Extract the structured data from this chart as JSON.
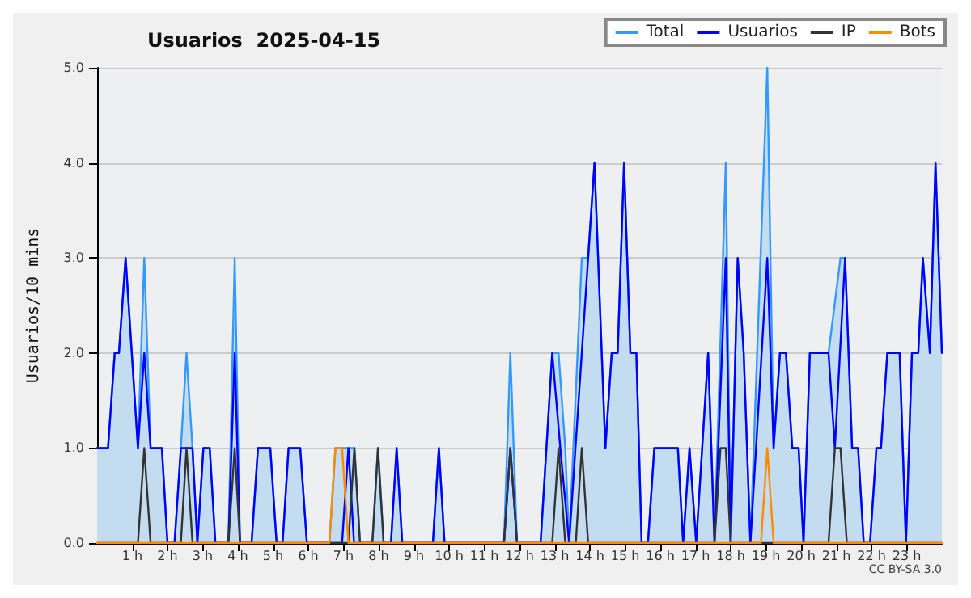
{
  "chart_data": {
    "type": "line",
    "title": "Usuarios  2025-04-15",
    "ylabel": "Usuarios/10 mins",
    "annotations": [
      "CC BY-SA 3.0"
    ],
    "xlim": [
      0,
      24
    ],
    "xticks": [
      {
        "value": 1,
        "label": "1 h"
      },
      {
        "value": 2,
        "label": "2 h"
      },
      {
        "value": 3,
        "label": "3 h"
      },
      {
        "value": 4,
        "label": "4 h"
      },
      {
        "value": 5,
        "label": "5 h"
      },
      {
        "value": 6,
        "label": "6 h"
      },
      {
        "value": 7,
        "label": "7 h"
      },
      {
        "value": 8,
        "label": "8 h"
      },
      {
        "value": 9,
        "label": "9 h"
      },
      {
        "value": 10,
        "label": "10 h"
      },
      {
        "value": 11,
        "label": "11 h"
      },
      {
        "value": 12,
        "label": "12 h"
      },
      {
        "value": 13,
        "label": "13 h"
      },
      {
        "value": 14,
        "label": "14 h"
      },
      {
        "value": 15,
        "label": "15 h"
      },
      {
        "value": 16,
        "label": "16 h"
      },
      {
        "value": 17,
        "label": "17 h"
      },
      {
        "value": 18,
        "label": "18 h"
      },
      {
        "value": 19,
        "label": "19 h"
      },
      {
        "value": 20,
        "label": "20 h"
      },
      {
        "value": 21,
        "label": "21 h"
      },
      {
        "value": 22,
        "label": "22 h"
      },
      {
        "value": 23,
        "label": "23 h"
      }
    ],
    "ylim": [
      0,
      5
    ],
    "yticks": [
      {
        "value": 0,
        "label": "0.0"
      },
      {
        "value": 1,
        "label": "1.0"
      },
      {
        "value": 2,
        "label": "2.0"
      },
      {
        "value": 3,
        "label": "3.0"
      },
      {
        "value": 4,
        "label": "4.0"
      },
      {
        "value": 5,
        "label": "5.0"
      }
    ],
    "grid": "y",
    "legend": "top right",
    "marker": "none",
    "line_style": "solid",
    "series": [
      {
        "name": "Total",
        "type": "area",
        "color": "#3399ff",
        "x": [
          0,
          0.31,
          0.5,
          0.62,
          0.81,
          1.16,
          1.34,
          1.52,
          1.84,
          2.0,
          2.2,
          2.38,
          2.54,
          2.71,
          2.85,
          3.02,
          3.2,
          3.36,
          3.73,
          3.91,
          4.06,
          4.39,
          4.57,
          4.92,
          5.1,
          5.27,
          5.44,
          5.77,
          5.96,
          6.6,
          6.77,
          7.31,
          7.47,
          7.82,
          7.98,
          8.14,
          8.35,
          8.51,
          8.67,
          9.54,
          9.71,
          9.87,
          11.56,
          11.74,
          11.93,
          12.6,
          12.93,
          13.11,
          13.3,
          13.41,
          13.77,
          13.95,
          14.13,
          14.44,
          14.62,
          14.79,
          14.97,
          15.15,
          15.32,
          15.47,
          15.65,
          15.83,
          16.5,
          16.65,
          16.83,
          17.02,
          17.36,
          17.54,
          17.86,
          18.0,
          18.2,
          18.37,
          18.56,
          19.04,
          19.22,
          19.4,
          19.57,
          19.75,
          19.93,
          20.07,
          20.25,
          20.78,
          21.12,
          21.25,
          21.45,
          21.62,
          21.78,
          21.96,
          22.14,
          22.27,
          22.45,
          22.8,
          22.98,
          23.15,
          23.33,
          23.46,
          23.66,
          23.82,
          24
        ],
        "values": [
          1,
          1,
          2,
          2,
          3,
          1,
          3,
          1,
          1,
          0,
          0,
          1,
          2,
          1,
          0,
          1,
          1,
          0,
          0,
          3,
          0,
          0,
          1,
          1,
          0,
          0,
          1,
          1,
          0,
          0,
          1,
          1,
          0,
          0,
          1,
          0,
          0,
          1,
          0,
          0,
          1,
          0,
          0,
          2,
          0,
          0,
          2,
          2,
          1,
          0,
          3,
          3,
          4,
          1,
          2,
          2,
          4,
          2,
          2,
          0,
          0,
          1,
          1,
          0,
          1,
          0,
          2,
          0,
          4,
          0,
          3,
          2,
          0,
          5,
          1,
          2,
          2,
          1,
          1,
          0,
          2,
          2,
          3,
          3,
          1,
          1,
          0,
          0,
          1,
          1,
          2,
          2,
          0,
          2,
          2,
          3,
          2,
          4,
          2
        ]
      },
      {
        "name": "Usuarios",
        "color": "#0000ff",
        "x": [
          0,
          0.31,
          0.5,
          0.62,
          0.81,
          1.16,
          1.34,
          1.52,
          1.84,
          2.0,
          2.2,
          2.38,
          2.71,
          2.85,
          3.02,
          3.2,
          3.36,
          3.73,
          3.91,
          4.06,
          4.39,
          4.57,
          4.92,
          5.1,
          5.27,
          5.44,
          5.77,
          5.96,
          6.96,
          7.14,
          7.3,
          8.35,
          8.51,
          8.67,
          9.54,
          9.71,
          9.87,
          11.56,
          11.74,
          11.93,
          12.6,
          12.93,
          13.16,
          13.41,
          13.77,
          14.13,
          14.44,
          14.62,
          14.79,
          14.97,
          15.15,
          15.32,
          15.47,
          15.65,
          15.83,
          16.5,
          16.65,
          16.83,
          17.02,
          17.36,
          17.54,
          17.86,
          18.0,
          18.2,
          18.37,
          18.56,
          19.04,
          19.22,
          19.4,
          19.57,
          19.75,
          19.93,
          20.07,
          20.25,
          20.78,
          20.96,
          21.25,
          21.45,
          21.62,
          21.78,
          21.96,
          22.14,
          22.27,
          22.45,
          22.8,
          22.98,
          23.15,
          23.33,
          23.46,
          23.66,
          23.82,
          24
        ],
        "values": [
          1,
          1,
          2,
          2,
          3,
          1,
          2,
          1,
          1,
          0,
          0,
          1,
          1,
          0,
          1,
          1,
          0,
          0,
          2,
          0,
          0,
          1,
          1,
          0,
          0,
          1,
          1,
          0,
          0,
          1,
          0,
          0,
          1,
          0,
          0,
          1,
          0,
          0,
          1,
          0,
          0,
          2,
          1,
          0,
          2,
          4,
          1,
          2,
          2,
          4,
          2,
          2,
          0,
          0,
          1,
          1,
          0,
          1,
          0,
          2,
          0,
          3,
          0,
          3,
          2,
          0,
          3,
          1,
          2,
          2,
          1,
          1,
          0,
          2,
          2,
          1,
          3,
          1,
          1,
          0,
          0,
          1,
          1,
          2,
          2,
          0,
          2,
          2,
          3,
          2,
          4,
          2
        ]
      },
      {
        "name": "IP",
        "color": "#333333",
        "x": [
          0,
          1.16,
          1.34,
          1.52,
          2.38,
          2.54,
          2.71,
          3.73,
          3.91,
          4.06,
          7.14,
          7.31,
          7.47,
          7.82,
          7.98,
          8.14,
          11.56,
          11.74,
          11.93,
          12.93,
          13.11,
          13.3,
          13.6,
          13.77,
          13.95,
          17.54,
          17.71,
          17.86,
          18.0,
          20.78,
          20.96,
          21.12,
          21.3,
          24
        ],
        "values": [
          0,
          0,
          1,
          0,
          0,
          1,
          0,
          0,
          1,
          0,
          0,
          1,
          0,
          0,
          1,
          0,
          0,
          1,
          0,
          0,
          1,
          0,
          0,
          1,
          0,
          0,
          1,
          1,
          0,
          0,
          1,
          1,
          0,
          0
        ]
      },
      {
        "name": "Bots",
        "color": "#ff8c00",
        "x": [
          0,
          6.6,
          6.77,
          6.96,
          7.14,
          18.86,
          19.04,
          19.22,
          24
        ],
        "values": [
          0,
          0,
          1,
          1,
          0,
          0,
          1,
          0,
          0
        ]
      }
    ]
  }
}
